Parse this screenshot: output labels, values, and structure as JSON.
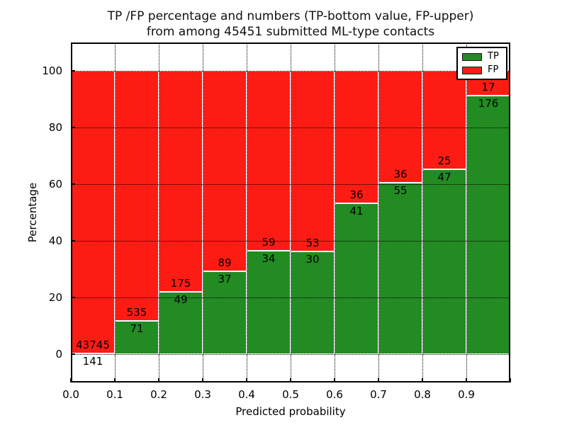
{
  "chart_data": {
    "type": "bar",
    "stacked": true,
    "title_line1": "TP /FP percentage and numbers (TP-bottom value, FP-upper)",
    "title_line2": "from among 45451 submitted ML-type contacts",
    "xlabel": "Predicted probability",
    "ylabel": "Percentage",
    "x_tick_labels": [
      "0.0",
      "0.1",
      "0.2",
      "0.3",
      "0.4",
      "0.5",
      "0.6",
      "0.7",
      "0.8",
      "0.9"
    ],
    "y_ticks": [
      0,
      20,
      40,
      60,
      80,
      100
    ],
    "y_tick_labels": [
      "0",
      "20",
      "40",
      "60",
      "80",
      "100"
    ],
    "xlim": [
      0.0,
      1.0
    ],
    "ylim": [
      -10,
      110
    ],
    "bin_width": 0.1,
    "categories": [
      "0.0-0.1",
      "0.1-0.2",
      "0.2-0.3",
      "0.3-0.4",
      "0.4-0.5",
      "0.5-0.6",
      "0.6-0.7",
      "0.7-0.8",
      "0.8-0.9",
      "0.9-1.0"
    ],
    "series": [
      {
        "name": "TP",
        "color": "#228B22",
        "counts": [
          141,
          71,
          49,
          37,
          34,
          30,
          41,
          55,
          47,
          176
        ]
      },
      {
        "name": "FP",
        "color": "#FC1C14",
        "counts": [
          43745,
          535,
          175,
          89,
          59,
          53,
          36,
          36,
          25,
          17
        ]
      }
    ],
    "tp_percent": [
      0.32,
      11.72,
      21.88,
      29.37,
      36.56,
      36.14,
      53.25,
      60.44,
      65.28,
      91.19
    ],
    "grid": true,
    "legend": {
      "position": "upper right",
      "entries": [
        {
          "label": "TP",
          "color": "#228B22"
        },
        {
          "label": "FP",
          "color": "#FC1C14"
        }
      ]
    }
  }
}
